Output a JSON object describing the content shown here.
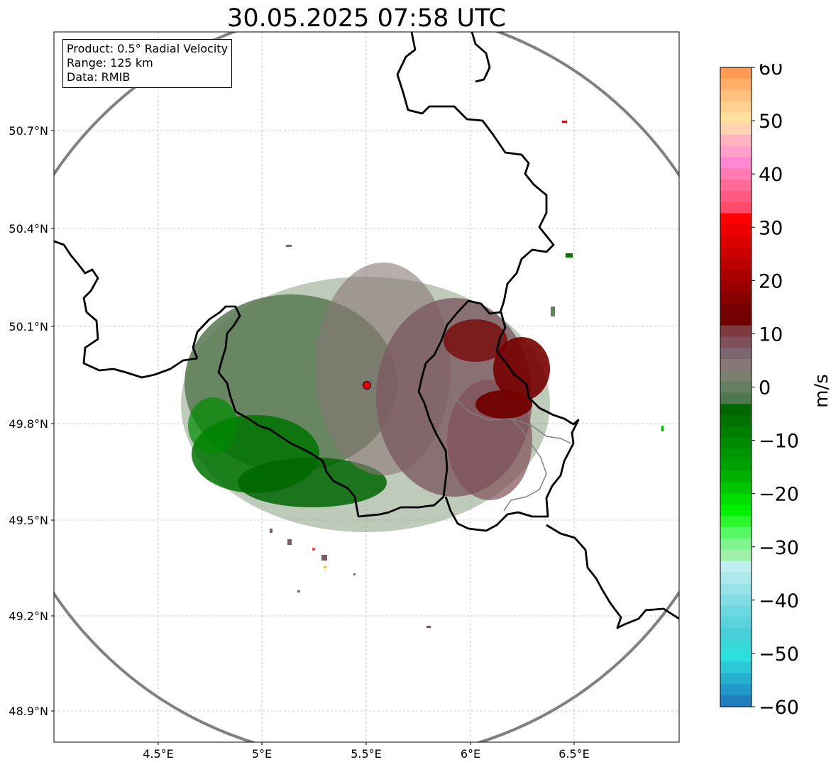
{
  "title": "30.05.2025 07:58 UTC",
  "info": {
    "product": "Product: 0.5° Radial Velocity",
    "range": "Range: 125 km",
    "source": "Data: RMIB"
  },
  "lat_ticks": [
    "50.7°N",
    "50.4°N",
    "50.1°N",
    "49.8°N",
    "49.5°N",
    "49.2°N",
    "48.9°N"
  ],
  "lon_ticks": [
    "4.5°E",
    "5°E",
    "5.5°E",
    "6°E",
    "6.5°E"
  ],
  "colorbar": {
    "unit": "m/s",
    "min": -60,
    "max": 60,
    "tick_labels": [
      "60",
      "50",
      "40",
      "30",
      "20",
      "10",
      "0",
      "−10",
      "−20",
      "−30",
      "−40",
      "−50",
      "−60"
    ],
    "colors": [
      "#ff9a52",
      "#ffae68",
      "#ffc07e",
      "#ffd08f",
      "#ffe09e",
      "#ffd2b3",
      "#ffb3c0",
      "#ffa0cc",
      "#ff88d0",
      "#ff7ab0",
      "#ff6a96",
      "#ff5a80",
      "#ff4a6a",
      "#ff0000",
      "#ee0000",
      "#dd0000",
      "#cc0000",
      "#bb0000",
      "#aa0000",
      "#990000",
      "#880000",
      "#770000",
      "#700000",
      "#7e3b3f",
      "#7f5058",
      "#7c6670",
      "#887777",
      "#7a8070",
      "#638160",
      "#507850",
      "#006600",
      "#007200",
      "#007e00",
      "#008a00",
      "#009600",
      "#00a200",
      "#00b200",
      "#00c600",
      "#00de00",
      "#00f000",
      "#2cf52c",
      "#56f866",
      "#7ef58e",
      "#9ff0a8",
      "#c0eff0",
      "#ade8ec",
      "#97e2e8",
      "#80dde4",
      "#6cd8e0",
      "#5ad3dc",
      "#48ced8",
      "#36d8d8",
      "#2ce0e0",
      "#2cc8d8",
      "#26b0cf",
      "#2098c8",
      "#1f7ec0"
    ]
  }
}
